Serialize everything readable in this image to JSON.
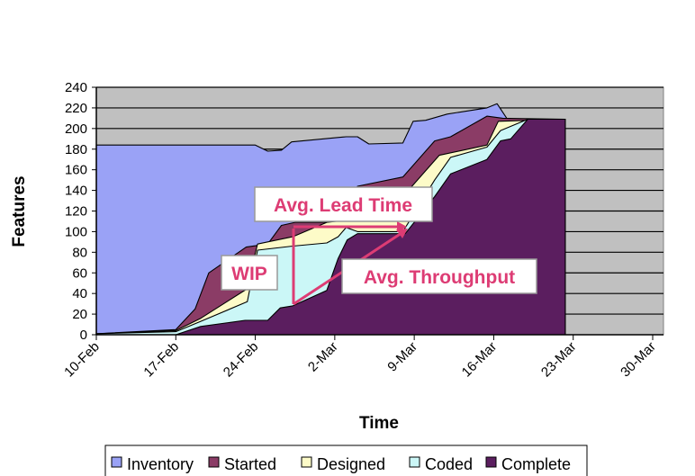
{
  "chart_data": {
    "type": "area",
    "stacking": "cumulative flow",
    "title": "",
    "xlabel": "Time",
    "ylabel": "Features",
    "x_unit": "days since 10-Feb",
    "xlim": [
      0,
      50
    ],
    "ylim": [
      0,
      240
    ],
    "yticks": [
      0,
      20,
      40,
      60,
      80,
      100,
      120,
      140,
      160,
      180,
      200,
      220,
      240
    ],
    "xticks": [
      {
        "day": 0,
        "label": "10-Feb"
      },
      {
        "day": 7,
        "label": "17-Feb"
      },
      {
        "day": 14,
        "label": "24-Feb"
      },
      {
        "day": 21,
        "label": "2-Mar"
      },
      {
        "day": 28,
        "label": "9-Mar"
      },
      {
        "day": 35,
        "label": "16-Mar"
      },
      {
        "day": 42,
        "label": "23-Mar"
      },
      {
        "day": 49,
        "label": "30-Mar"
      }
    ],
    "grid": "horizontal",
    "legend_position": "bottom",
    "series": [
      {
        "name": "Inventory",
        "color": "#9aa2f6",
        "points": [
          [
            0,
            184
          ],
          [
            14,
            184
          ],
          [
            15.1,
            178
          ],
          [
            16.3,
            179
          ],
          [
            17.2,
            187
          ],
          [
            22,
            192
          ],
          [
            23,
            192
          ],
          [
            24,
            185
          ],
          [
            27,
            186
          ],
          [
            27.9,
            207
          ],
          [
            29,
            208
          ],
          [
            30.9,
            214
          ],
          [
            34.4,
            220
          ],
          [
            35.3,
            224
          ],
          [
            36.2,
            209
          ],
          [
            41.3,
            209
          ]
        ]
      },
      {
        "name": "Started",
        "color": "#8b3c66",
        "points": [
          [
            0,
            1
          ],
          [
            7,
            5
          ],
          [
            8.7,
            25
          ],
          [
            9.9,
            60
          ],
          [
            13.2,
            85
          ],
          [
            15.1,
            88
          ],
          [
            16.3,
            106
          ],
          [
            17.5,
            109
          ],
          [
            20.3,
            109
          ],
          [
            22,
            115
          ],
          [
            23,
            144
          ],
          [
            27,
            153
          ],
          [
            29.8,
            188
          ],
          [
            31.2,
            192
          ],
          [
            34.4,
            212
          ],
          [
            35.8,
            210
          ],
          [
            41.3,
            209
          ]
        ]
      },
      {
        "name": "Designed",
        "color": "#fdfbc8",
        "points": [
          [
            0,
            1
          ],
          [
            7,
            4
          ],
          [
            9.2,
            16
          ],
          [
            13.2,
            44
          ],
          [
            14.2,
            88
          ],
          [
            17.3,
            95
          ],
          [
            20.3,
            109
          ],
          [
            22,
            111
          ],
          [
            27,
            112
          ],
          [
            27.8,
            144
          ],
          [
            30.2,
            174
          ],
          [
            34.4,
            184
          ],
          [
            35.4,
            207
          ],
          [
            41.3,
            209
          ]
        ]
      },
      {
        "name": "Coded",
        "color": "#cbf7f7",
        "points": [
          [
            0,
            1
          ],
          [
            7,
            3
          ],
          [
            9.2,
            13
          ],
          [
            13.3,
            32
          ],
          [
            14.2,
            82
          ],
          [
            17.3,
            86
          ],
          [
            20.3,
            89
          ],
          [
            21.3,
            95
          ],
          [
            22,
            104
          ],
          [
            23,
            100
          ],
          [
            27,
            100
          ],
          [
            29.8,
            150
          ],
          [
            31.2,
            172
          ],
          [
            34.4,
            182
          ],
          [
            35.6,
            198
          ],
          [
            38,
            209
          ],
          [
            41.3,
            209
          ]
        ]
      },
      {
        "name": "Complete",
        "color": "#5b1e5f",
        "points": [
          [
            7,
            0
          ],
          [
            9.2,
            8
          ],
          [
            13.1,
            14
          ],
          [
            15.1,
            14
          ],
          [
            16.2,
            26
          ],
          [
            17.3,
            28
          ],
          [
            20.3,
            43
          ],
          [
            21.3,
            74
          ],
          [
            22.1,
            92
          ],
          [
            23,
            98
          ],
          [
            27.2,
            98
          ],
          [
            29.8,
            134
          ],
          [
            31.2,
            156
          ],
          [
            34.4,
            170
          ],
          [
            35.6,
            188
          ],
          [
            36.5,
            190
          ],
          [
            38,
            209
          ],
          [
            41.3,
            209
          ]
        ]
      }
    ],
    "annotations": [
      {
        "text": "Avg. Lead Time"
      },
      {
        "text": "WIP"
      },
      {
        "text": "Avg. Throughput"
      }
    ],
    "annotation_color": "#dd3c74"
  }
}
